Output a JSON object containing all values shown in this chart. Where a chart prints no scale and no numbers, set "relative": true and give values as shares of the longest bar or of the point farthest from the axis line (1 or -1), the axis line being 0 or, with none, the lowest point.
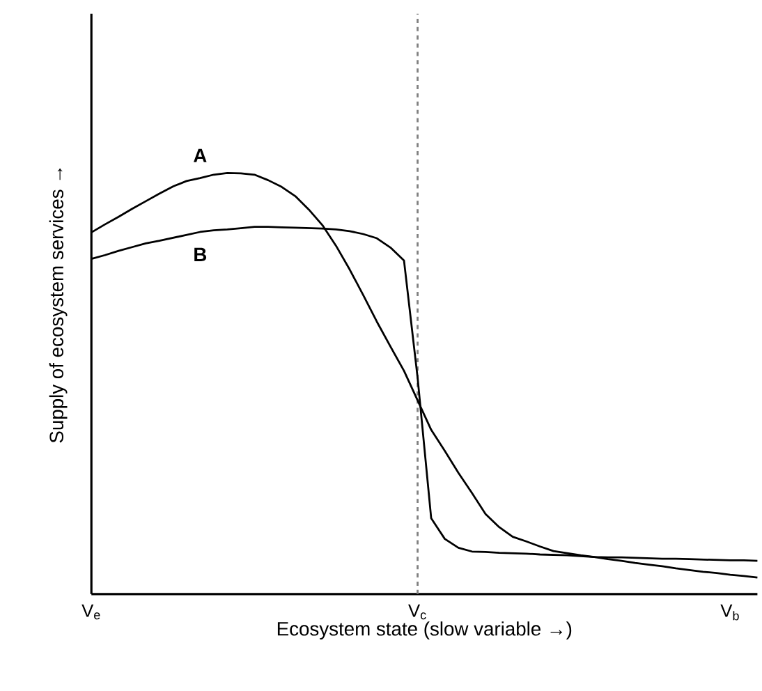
{
  "chart_data": {
    "type": "line",
    "relative": true,
    "xlabel": "Ecosystem state (slow variable →)",
    "ylabel": "Supply of ecosystem services →",
    "categories": [
      "V$_{e}$",
      null,
      null,
      null,
      null,
      null,
      null,
      null,
      null,
      null,
      null,
      null,
      null,
      null,
      null,
      null,
      null,
      null,
      null,
      null,
      null,
      null,
      null,
      null,
      "V$_{c}$",
      null,
      null,
      null,
      null,
      null,
      null,
      null,
      null,
      null,
      null,
      null,
      null,
      null,
      null,
      null,
      null,
      null,
      null,
      null,
      null,
      null,
      null,
      "V$_{b}$",
      null,
      null
    ],
    "ref_lines": [
      {
        "axis": "x",
        "value": "V$_{c}$",
        "color": "#808080",
        "line_style": "dashed"
      }
    ],
    "series": [
      {
        "name": "A",
        "color": "#000000",
        "values": [
          0.859,
          0.878,
          0.896,
          0.915,
          0.933,
          0.951,
          0.968,
          0.981,
          0.988,
          0.996,
          1.0,
          0.999,
          0.996,
          0.983,
          0.967,
          0.945,
          0.913,
          0.876,
          0.827,
          0.771,
          0.71,
          0.647,
          0.588,
          0.53,
          0.46,
          0.39,
          0.34,
          0.288,
          0.24,
          0.19,
          0.159,
          0.136,
          0.125,
          0.113,
          0.102,
          0.097,
          0.092,
          0.088,
          0.083,
          0.079,
          0.074,
          0.07,
          0.066,
          0.061,
          0.057,
          0.053,
          0.05,
          0.046,
          0.043,
          0.039
        ]
      },
      {
        "name": "B",
        "color": "#000000",
        "values": [
          0.796,
          0.805,
          0.815,
          0.824,
          0.833,
          0.839,
          0.846,
          0.853,
          0.86,
          0.864,
          0.866,
          0.869,
          0.872,
          0.872,
          0.871,
          0.87,
          0.869,
          0.868,
          0.866,
          0.862,
          0.855,
          0.845,
          0.823,
          0.792,
          0.514,
          0.18,
          0.131,
          0.11,
          0.101,
          0.1,
          0.098,
          0.097,
          0.096,
          0.094,
          0.093,
          0.092,
          0.09,
          0.088,
          0.087,
          0.087,
          0.086,
          0.085,
          0.084,
          0.084,
          0.083,
          0.082,
          0.081,
          0.08,
          0.08,
          0.079
        ]
      }
    ]
  }
}
